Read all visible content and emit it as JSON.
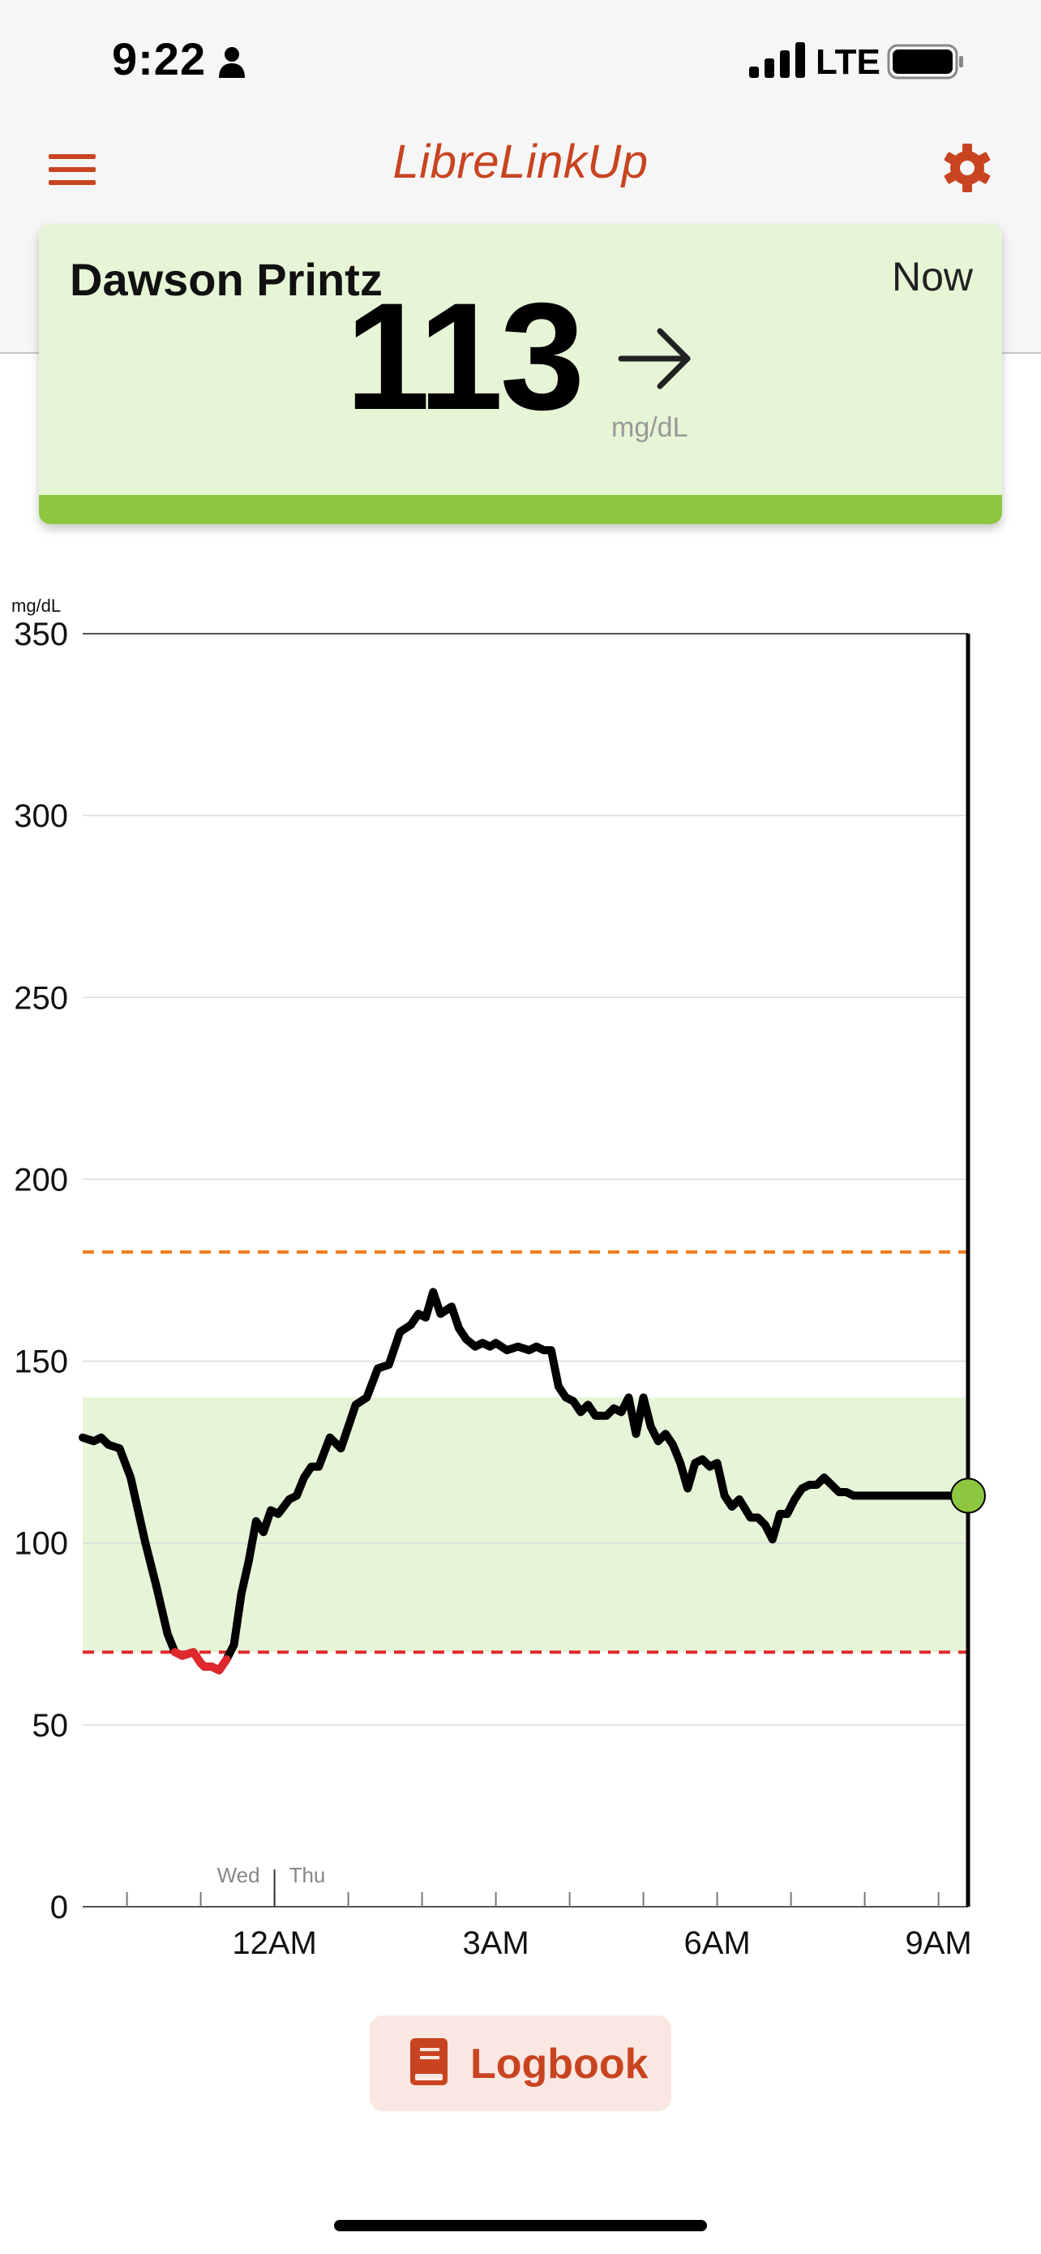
{
  "status_bar": {
    "time": "9:22",
    "network": "LTE",
    "icons": [
      "person-icon",
      "signal-icon",
      "battery-icon"
    ]
  },
  "header": {
    "title": "LibreLinkUp",
    "menu_icon": "hamburger-menu-icon",
    "settings_icon": "gear-icon",
    "accent_color": "#c84421"
  },
  "reading": {
    "patient_name": "Dawson Printz",
    "time_label": "Now",
    "value": "113",
    "unit": "mg/dL",
    "trend_icon": "arrow-right-icon",
    "status_color": "#8dc63f",
    "card_color": "#e6f5d6"
  },
  "chart_data": {
    "type": "line",
    "ylabel": "mg/dL",
    "ylim": [
      0,
      350
    ],
    "y_ticks": [
      "0",
      "50",
      "100",
      "150",
      "200",
      "250",
      "300",
      "350"
    ],
    "x_tick_labels": [
      "12AM",
      "3AM",
      "6AM",
      "9AM"
    ],
    "day_labels": [
      "Wed",
      "Thu"
    ],
    "x_range_hours": [
      -2.6,
      9.4
    ],
    "grid": true,
    "target_range": [
      70,
      140
    ],
    "high_threshold": 180,
    "low_threshold": 70,
    "colors": {
      "line": "#000000",
      "low_segment": "#e0282e",
      "target_band": "#e6f4d8",
      "high_line": "#f07a1a",
      "low_line": "#e0282e",
      "current_dot": "#8dc63f"
    },
    "series": [
      {
        "x": [
          -2.6,
          -2.45,
          -2.35,
          -2.25,
          -2.1,
          -1.95,
          -1.85,
          -1.75,
          -1.6,
          -1.45,
          -1.35,
          -1.25,
          -1.1,
          -1.0,
          -0.95,
          -0.85,
          -0.75,
          -0.65,
          -0.55,
          -0.45,
          -0.35,
          -0.25,
          -0.15,
          -0.05,
          0.05,
          0.2,
          0.3,
          0.4,
          0.5,
          0.6,
          0.75,
          0.9,
          1.0,
          1.1,
          1.25,
          1.4,
          1.55,
          1.7,
          1.85,
          1.95,
          2.05,
          2.15,
          2.25,
          2.4,
          2.5,
          2.6,
          2.72,
          2.82,
          2.92,
          3.0,
          3.15,
          3.3,
          3.45,
          3.55,
          3.65,
          3.75,
          3.85,
          3.95,
          4.05,
          4.15,
          4.25,
          4.35,
          4.5,
          4.6,
          4.7,
          4.8,
          4.9,
          5.0,
          5.1,
          5.2,
          5.3,
          5.4,
          5.5,
          5.6,
          5.7,
          5.8,
          5.9,
          6.0,
          6.1,
          6.2,
          6.3,
          6.45,
          6.55,
          6.65,
          6.75,
          6.85,
          6.95,
          7.05,
          7.15,
          7.25,
          7.35,
          7.45,
          7.55,
          7.65,
          7.75,
          7.85,
          7.95,
          8.05,
          8.15,
          8.25,
          8.35,
          8.45,
          8.55,
          8.65,
          8.75,
          8.85,
          8.95,
          9.05,
          9.15,
          9.2
        ],
        "values": [
          129,
          128,
          129,
          127,
          126,
          118,
          109,
          100,
          88,
          75,
          70,
          69,
          70,
          67,
          66,
          66,
          65,
          68,
          72,
          86,
          95,
          106,
          103,
          109,
          108,
          112,
          113,
          118,
          121,
          121,
          129,
          126,
          132,
          138,
          140,
          148,
          149,
          158,
          160,
          163,
          162,
          169,
          163,
          165,
          159,
          156,
          154,
          155,
          154,
          155,
          153,
          154,
          153,
          154,
          153,
          153,
          143,
          140,
          139,
          136,
          138,
          135,
          135,
          137,
          136,
          140,
          130,
          140,
          132,
          128,
          130,
          127,
          122,
          115,
          122,
          123,
          121,
          122,
          113,
          110,
          112,
          107,
          107,
          105,
          101,
          108,
          108,
          112,
          115,
          116,
          116,
          118,
          116,
          114,
          114,
          113,
          113,
          113,
          113,
          113,
          113,
          113,
          113,
          113,
          113,
          113,
          113,
          113,
          113,
          113
        ]
      }
    ],
    "current_value": 113
  },
  "logbook": {
    "label": "Logbook",
    "icon": "book-icon"
  }
}
